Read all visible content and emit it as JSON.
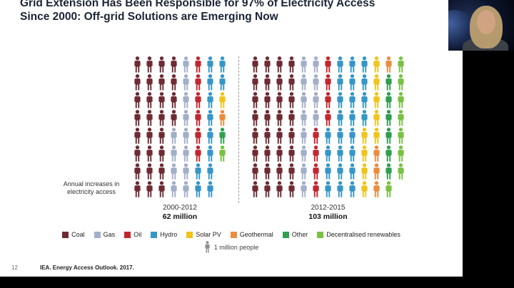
{
  "slide": {
    "title_line1": "Grid Extension Has Been Responsible for 97% of Electricity Access",
    "title_line2": "Since 2000: Off-grid Solutions are Emerging Now",
    "page_number": "12",
    "source": "IEA. Energy Access Outlook. 2017."
  },
  "chart_data": {
    "type": "pictogram",
    "title": "Annual increases in electricity access",
    "unit_label": "1 million people",
    "rows": 8,
    "legend": [
      {
        "label": "Coal",
        "color": "#6e2b33"
      },
      {
        "label": "Gas",
        "color": "#a3aec8"
      },
      {
        "label": "Oil",
        "color": "#c1272d"
      },
      {
        "label": "Hydro",
        "color": "#3596c8"
      },
      {
        "label": "Solar PV",
        "color": "#f2c319"
      },
      {
        "label": "Geothermal",
        "color": "#ec8c3e"
      },
      {
        "label": "Other",
        "color": "#2f9e4f"
      },
      {
        "label": "Decentralised renewables",
        "color": "#79c143"
      }
    ],
    "groups": [
      {
        "period": "2000-2012",
        "total_label": "62 million",
        "total_millions": 62,
        "values": {
          "Coal": 28,
          "Gas": 12,
          "Oil": 6,
          "Hydro": 12,
          "Solar PV": 1,
          "Geothermal": 1,
          "Other": 1,
          "Decentralised renewables": 1
        }
      },
      {
        "period": "2012-2015",
        "total_label": "103 million",
        "total_millions": 103,
        "values": {
          "Coal": 32,
          "Gas": 12,
          "Oil": 8,
          "Hydro": 24,
          "Solar PV": 9,
          "Geothermal": 4,
          "Other": 6,
          "Decentralised renewables": 8
        }
      }
    ]
  }
}
